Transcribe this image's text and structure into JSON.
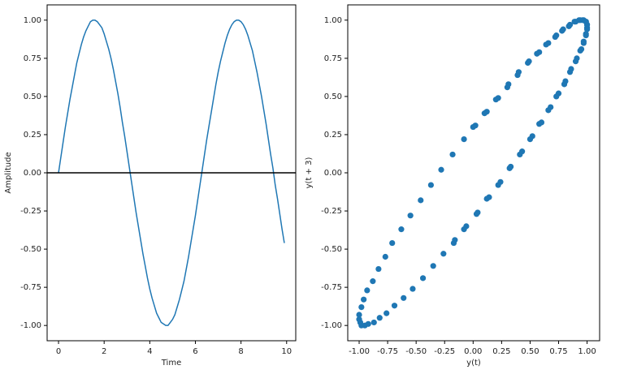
{
  "chart_data": [
    {
      "type": "line",
      "xlabel": "Time",
      "ylabel": "Amplitude",
      "x": [
        0,
        0.1,
        0.2,
        0.3,
        0.4,
        0.5,
        0.6,
        0.7,
        0.8,
        0.9,
        1,
        1.1,
        1.2,
        1.3,
        1.4,
        1.5,
        1.6,
        1.7,
        1.8,
        1.9,
        2,
        2.1,
        2.2,
        2.3,
        2.4,
        2.5,
        2.6,
        2.7,
        2.8,
        2.9,
        3,
        3.1,
        3.2,
        3.3,
        3.4,
        3.5,
        3.6,
        3.7,
        3.8,
        3.9,
        4,
        4.1,
        4.2,
        4.3,
        4.4,
        4.5,
        4.6,
        4.7,
        4.8,
        4.9,
        5,
        5.1,
        5.2,
        5.3,
        5.4,
        5.5,
        5.6,
        5.7,
        5.8,
        5.9,
        6,
        6.1,
        6.2,
        6.3,
        6.4,
        6.5,
        6.6,
        6.7,
        6.8,
        6.9,
        7,
        7.1,
        7.2,
        7.3,
        7.4,
        7.5,
        7.6,
        7.7,
        7.8,
        7.9,
        8,
        8.1,
        8.2,
        8.3,
        8.4,
        8.5,
        8.6,
        8.7,
        8.8,
        8.9,
        9,
        9.1,
        9.2,
        9.3,
        9.4,
        9.5,
        9.6,
        9.7,
        9.8,
        9.9
      ],
      "series": [
        {
          "color": "#1f77b4",
          "values": [
            0,
            0.1,
            0.2,
            0.3,
            0.39,
            0.48,
            0.56,
            0.64,
            0.72,
            0.78,
            0.84,
            0.89,
            0.93,
            0.96,
            0.99,
            1,
            1,
            0.99,
            0.97,
            0.95,
            0.91,
            0.86,
            0.81,
            0.75,
            0.68,
            0.6,
            0.52,
            0.43,
            0.33,
            0.24,
            0.14,
            0.04,
            -0.06,
            -0.16,
            -0.26,
            -0.35,
            -0.44,
            -0.53,
            -0.61,
            -0.69,
            -0.76,
            -0.82,
            -0.87,
            -0.92,
            -0.95,
            -0.98,
            -0.99,
            -1,
            -1,
            -0.98,
            -0.96,
            -0.93,
            -0.88,
            -0.83,
            -0.77,
            -0.71,
            -0.63,
            -0.55,
            -0.46,
            -0.37,
            -0.28,
            -0.18,
            -0.08,
            0.02,
            0.12,
            0.22,
            0.31,
            0.4,
            0.49,
            0.58,
            0.66,
            0.73,
            0.79,
            0.85,
            0.9,
            0.94,
            0.97,
            0.99,
            1,
            1,
            0.99,
            0.97,
            0.94,
            0.9,
            0.85,
            0.8,
            0.73,
            0.66,
            0.58,
            0.5,
            0.41,
            0.32,
            0.22,
            0.12,
            0.03,
            -0.08,
            -0.17,
            -0.27,
            -0.37,
            -0.46
          ]
        }
      ],
      "axhline": {
        "value": 0,
        "color": "#000000"
      },
      "xlim": [
        -0.5,
        10.4
      ],
      "ylim": [
        -1.1,
        1.1
      ],
      "xticks": [
        0,
        2,
        4,
        6,
        8,
        10
      ],
      "yticks": [
        {
          "value": -1,
          "label": "-1.00"
        },
        {
          "value": -0.75,
          "label": "-0.75"
        },
        {
          "value": -0.5,
          "label": "-0.50"
        },
        {
          "value": -0.25,
          "label": "-0.25"
        },
        {
          "value": 0,
          "label": "0.00"
        },
        {
          "value": 0.25,
          "label": "0.25"
        },
        {
          "value": 0.5,
          "label": "0.50"
        },
        {
          "value": 0.75,
          "label": "0.75"
        },
        {
          "value": 1,
          "label": "1.00"
        }
      ]
    },
    {
      "type": "scatter",
      "xlabel": "y(t)",
      "ylabel": "y(t + 3)",
      "color": "#1f77b4",
      "x": [
        0,
        0.1,
        0.2,
        0.3,
        0.39,
        0.48,
        0.56,
        0.64,
        0.72,
        0.78,
        0.84,
        0.89,
        0.93,
        0.96,
        0.99,
        1,
        1,
        0.99,
        0.97,
        0.95,
        0.91,
        0.86,
        0.81,
        0.75,
        0.68,
        0.6,
        0.52,
        0.43,
        0.33,
        0.24,
        0.14,
        0.04,
        -0.06,
        -0.16,
        -0.26,
        -0.35,
        -0.44,
        -0.53,
        -0.61,
        -0.69,
        -0.76,
        -0.82,
        -0.87,
        -0.92,
        -0.95,
        -0.98,
        -0.99,
        -1,
        -1,
        -0.98,
        -0.96,
        -0.93,
        -0.88,
        -0.83,
        -0.77,
        -0.71,
        -0.63,
        -0.55,
        -0.46,
        -0.37,
        -0.28,
        -0.18,
        -0.08,
        0.02,
        0.12,
        0.22,
        0.31,
        0.4,
        0.49,
        0.58,
        0.66,
        0.73,
        0.79,
        0.85,
        0.9,
        0.94,
        0.97,
        0.99,
        1,
        1,
        0.99,
        0.97,
        0.94,
        0.9,
        0.85,
        0.8,
        0.73,
        0.66,
        0.58,
        0.5,
        0.41,
        0.32,
        0.22,
        0.12,
        0.03,
        -0.08,
        -0.17
      ],
      "y": [
        0.3,
        0.39,
        0.48,
        0.56,
        0.64,
        0.72,
        0.78,
        0.84,
        0.89,
        0.93,
        0.96,
        0.99,
        1,
        1,
        0.99,
        0.97,
        0.95,
        0.91,
        0.86,
        0.81,
        0.75,
        0.68,
        0.6,
        0.52,
        0.43,
        0.33,
        0.24,
        0.14,
        0.04,
        -0.06,
        -0.16,
        -0.26,
        -0.35,
        -0.44,
        -0.53,
        -0.61,
        -0.69,
        -0.76,
        -0.82,
        -0.87,
        -0.92,
        -0.95,
        -0.98,
        -0.99,
        -1,
        -1,
        -0.98,
        -0.96,
        -0.93,
        -0.88,
        -0.83,
        -0.77,
        -0.71,
        -0.63,
        -0.55,
        -0.46,
        -0.37,
        -0.28,
        -0.18,
        -0.08,
        0.02,
        0.12,
        0.22,
        0.31,
        0.4,
        0.49,
        0.58,
        0.66,
        0.73,
        0.79,
        0.85,
        0.9,
        0.94,
        0.97,
        0.99,
        1,
        1,
        0.99,
        0.97,
        0.94,
        0.9,
        0.85,
        0.8,
        0.73,
        0.66,
        0.58,
        0.5,
        0.41,
        0.32,
        0.22,
        0.12,
        0.03,
        -0.08,
        -0.17,
        -0.27,
        -0.37,
        -0.46
      ],
      "xlim": [
        -1.1,
        1.11
      ],
      "ylim": [
        -1.1,
        1.1
      ],
      "xticks": [
        {
          "value": -1,
          "label": "-1.00"
        },
        {
          "value": -0.75,
          "label": "-0.75"
        },
        {
          "value": -0.5,
          "label": "-0.50"
        },
        {
          "value": -0.25,
          "label": "-0.25"
        },
        {
          "value": 0,
          "label": "0.00"
        },
        {
          "value": 0.25,
          "label": "0.25"
        },
        {
          "value": 0.5,
          "label": "0.50"
        },
        {
          "value": 0.75,
          "label": "0.75"
        },
        {
          "value": 1,
          "label": "1.00"
        }
      ],
      "yticks": [
        {
          "value": -1,
          "label": "-1.00"
        },
        {
          "value": -0.75,
          "label": "-0.75"
        },
        {
          "value": -0.5,
          "label": "-0.50"
        },
        {
          "value": -0.25,
          "label": "-0.25"
        },
        {
          "value": 0,
          "label": "0.00"
        },
        {
          "value": 0.25,
          "label": "0.25"
        },
        {
          "value": 0.5,
          "label": "0.50"
        },
        {
          "value": 0.75,
          "label": "0.75"
        },
        {
          "value": 1,
          "label": "1.00"
        }
      ]
    }
  ]
}
